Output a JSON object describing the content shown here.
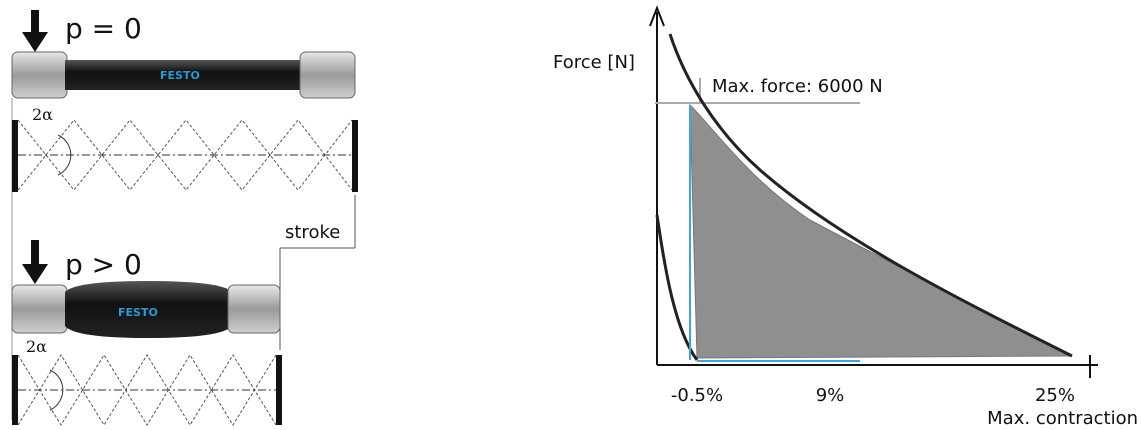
{
  "left_panel": {
    "states": [
      {
        "pressure": "p = 0",
        "angle": "2α",
        "brand": "FESTO"
      },
      {
        "pressure": "p > 0",
        "angle": "2α",
        "brand": "FESTO"
      }
    ],
    "stroke_label": "stroke"
  },
  "right_panel": {
    "y_label": "Force [N]",
    "max_force_label": "Max. force: 6000 N",
    "x_ticks": [
      "-0.5%",
      "9%",
      "25%"
    ],
    "x_label": "Max. contraction"
  }
}
